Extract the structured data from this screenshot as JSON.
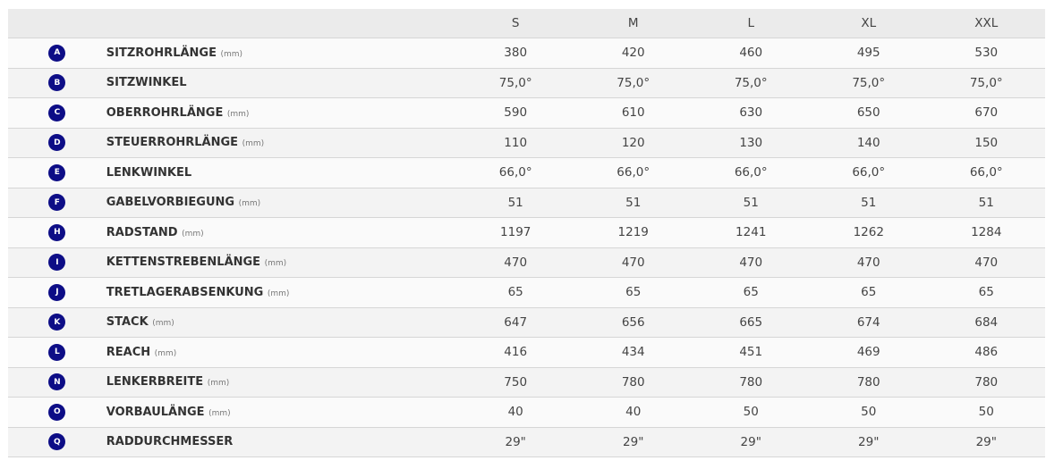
{
  "columns": [
    "S",
    "M",
    "L",
    "XL",
    "XXL"
  ],
  "badge_color": "#0d0d86",
  "rows": [
    {
      "key": "A",
      "label": "SITZROHRLÄNGE",
      "unit": "(mm)",
      "values": [
        "380",
        "420",
        "460",
        "495",
        "530"
      ]
    },
    {
      "key": "B",
      "label": "SITZWINKEL",
      "unit": "",
      "values": [
        "75,0°",
        "75,0°",
        "75,0°",
        "75,0°",
        "75,0°"
      ]
    },
    {
      "key": "C",
      "label": "OBERROHRLÄNGE",
      "unit": "(mm)",
      "values": [
        "590",
        "610",
        "630",
        "650",
        "670"
      ]
    },
    {
      "key": "D",
      "label": "STEUERROHRLÄNGE",
      "unit": "(mm)",
      "values": [
        "110",
        "120",
        "130",
        "140",
        "150"
      ]
    },
    {
      "key": "E",
      "label": "LENKWINKEL",
      "unit": "",
      "values": [
        "66,0°",
        "66,0°",
        "66,0°",
        "66,0°",
        "66,0°"
      ]
    },
    {
      "key": "F",
      "label": "GABELVORBIEGUNG",
      "unit": "(mm)",
      "values": [
        "51",
        "51",
        "51",
        "51",
        "51"
      ]
    },
    {
      "key": "H",
      "label": "RADSTAND",
      "unit": "(mm)",
      "values": [
        "1197",
        "1219",
        "1241",
        "1262",
        "1284"
      ]
    },
    {
      "key": "I",
      "label": "KETTENSTREBENLÄNGE",
      "unit": "(mm)",
      "values": [
        "470",
        "470",
        "470",
        "470",
        "470"
      ]
    },
    {
      "key": "J",
      "label": "TRETLAGERABSENKUNG",
      "unit": "(mm)",
      "values": [
        "65",
        "65",
        "65",
        "65",
        "65"
      ]
    },
    {
      "key": "K",
      "label": "STACK",
      "unit": "(mm)",
      "values": [
        "647",
        "656",
        "665",
        "674",
        "684"
      ]
    },
    {
      "key": "L",
      "label": "REACH",
      "unit": "(mm)",
      "values": [
        "416",
        "434",
        "451",
        "469",
        "486"
      ]
    },
    {
      "key": "N",
      "label": "LENKERBREITE",
      "unit": "(mm)",
      "values": [
        "750",
        "780",
        "780",
        "780",
        "780"
      ]
    },
    {
      "key": "O",
      "label": "VORBAULÄNGE",
      "unit": "(mm)",
      "values": [
        "40",
        "40",
        "50",
        "50",
        "50"
      ]
    },
    {
      "key": "Q",
      "label": "RADDURCHMESSER",
      "unit": "",
      "values": [
        "29\"",
        "29\"",
        "29\"",
        "29\"",
        "29\""
      ]
    }
  ]
}
